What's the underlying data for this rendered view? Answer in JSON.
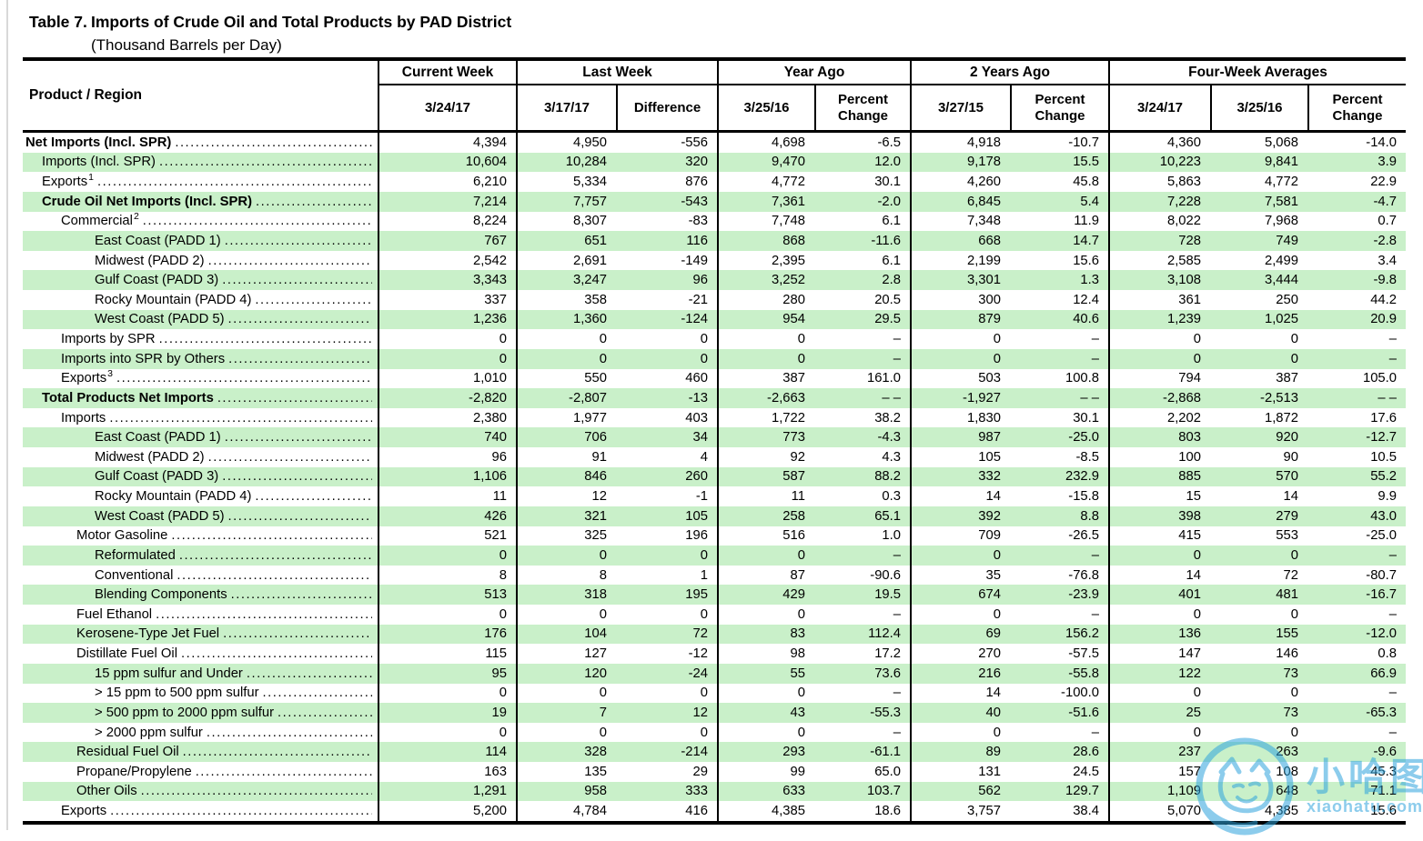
{
  "title": {
    "label": "Table 7.",
    "text": "Imports of Crude Oil and Total Products by PAD District",
    "subtitle": "(Thousand Barrels per Day)"
  },
  "header": {
    "product_region": "Product / Region",
    "groups": [
      {
        "label": "Current Week",
        "cols": [
          "3/24/17"
        ]
      },
      {
        "label": "Last Week",
        "cols": [
          "3/17/17",
          "Difference"
        ]
      },
      {
        "label": "Year Ago",
        "cols": [
          "3/25/16",
          "Percent Change"
        ]
      },
      {
        "label": "2 Years Ago",
        "cols": [
          "3/27/15",
          "Percent Change"
        ]
      },
      {
        "label": "Four-Week Averages",
        "cols": [
          "3/24/17",
          "3/25/16",
          "Percent Change"
        ]
      }
    ]
  },
  "rows": [
    {
      "label": "Net Imports (Incl. SPR)",
      "sup": "",
      "indent": 0,
      "bold": true,
      "values": [
        "4,394",
        "4,950",
        "-556",
        "4,698",
        "-6.5",
        "4,918",
        "-10.7",
        "4,360",
        "5,068",
        "-14.0"
      ]
    },
    {
      "label": "Imports (Incl. SPR)",
      "sup": "",
      "indent": 1,
      "bold": false,
      "values": [
        "10,604",
        "10,284",
        "320",
        "9,470",
        "12.0",
        "9,178",
        "15.5",
        "10,223",
        "9,841",
        "3.9"
      ]
    },
    {
      "label": "Exports",
      "sup": "1",
      "indent": 1,
      "bold": false,
      "values": [
        "6,210",
        "5,334",
        "876",
        "4,772",
        "30.1",
        "4,260",
        "45.8",
        "5,863",
        "4,772",
        "22.9"
      ]
    },
    {
      "label": "Crude Oil Net Imports (Incl. SPR)",
      "sup": "",
      "indent": 1,
      "bold": true,
      "values": [
        "7,214",
        "7,757",
        "-543",
        "7,361",
        "-2.0",
        "6,845",
        "5.4",
        "7,228",
        "7,581",
        "-4.7"
      ]
    },
    {
      "label": "Commercial",
      "sup": "2",
      "indent": 2,
      "bold": false,
      "values": [
        "8,224",
        "8,307",
        "-83",
        "7,748",
        "6.1",
        "7,348",
        "11.9",
        "8,022",
        "7,968",
        "0.7"
      ]
    },
    {
      "label": "East Coast (PADD 1)",
      "sup": "",
      "indent": 4,
      "bold": false,
      "values": [
        "767",
        "651",
        "116",
        "868",
        "-11.6",
        "668",
        "14.7",
        "728",
        "749",
        "-2.8"
      ]
    },
    {
      "label": "Midwest (PADD 2)",
      "sup": "",
      "indent": 4,
      "bold": false,
      "values": [
        "2,542",
        "2,691",
        "-149",
        "2,395",
        "6.1",
        "2,199",
        "15.6",
        "2,585",
        "2,499",
        "3.4"
      ]
    },
    {
      "label": "Gulf Coast (PADD 3)",
      "sup": "",
      "indent": 4,
      "bold": false,
      "values": [
        "3,343",
        "3,247",
        "96",
        "3,252",
        "2.8",
        "3,301",
        "1.3",
        "3,108",
        "3,444",
        "-9.8"
      ]
    },
    {
      "label": "Rocky Mountain (PADD 4)",
      "sup": "",
      "indent": 4,
      "bold": false,
      "values": [
        "337",
        "358",
        "-21",
        "280",
        "20.5",
        "300",
        "12.4",
        "361",
        "250",
        "44.2"
      ]
    },
    {
      "label": "West Coast (PADD 5)",
      "sup": "",
      "indent": 4,
      "bold": false,
      "values": [
        "1,236",
        "1,360",
        "-124",
        "954",
        "29.5",
        "879",
        "40.6",
        "1,239",
        "1,025",
        "20.9"
      ]
    },
    {
      "label": "Imports by SPR",
      "sup": "",
      "indent": 2,
      "bold": false,
      "values": [
        "0",
        "0",
        "0",
        "0",
        "–",
        "0",
        "–",
        "0",
        "0",
        "–"
      ]
    },
    {
      "label": "Imports into SPR by Others",
      "sup": "",
      "indent": 2,
      "bold": false,
      "values": [
        "0",
        "0",
        "0",
        "0",
        "–",
        "0",
        "–",
        "0",
        "0",
        "–"
      ]
    },
    {
      "label": "Exports",
      "sup": "3",
      "indent": 2,
      "bold": false,
      "values": [
        "1,010",
        "550",
        "460",
        "387",
        "161.0",
        "503",
        "100.8",
        "794",
        "387",
        "105.0"
      ]
    },
    {
      "label": "Total Products Net Imports",
      "sup": "",
      "indent": 1,
      "bold": true,
      "values": [
        "-2,820",
        "-2,807",
        "-13",
        "-2,663",
        "– –",
        "-1,927",
        "– –",
        "-2,868",
        "-2,513",
        "– –"
      ]
    },
    {
      "label": "Imports",
      "sup": "",
      "indent": 2,
      "bold": false,
      "values": [
        "2,380",
        "1,977",
        "403",
        "1,722",
        "38.2",
        "1,830",
        "30.1",
        "2,202",
        "1,872",
        "17.6"
      ]
    },
    {
      "label": "East Coast (PADD 1)",
      "sup": "",
      "indent": 4,
      "bold": false,
      "values": [
        "740",
        "706",
        "34",
        "773",
        "-4.3",
        "987",
        "-25.0",
        "803",
        "920",
        "-12.7"
      ]
    },
    {
      "label": "Midwest (PADD 2)",
      "sup": "",
      "indent": 4,
      "bold": false,
      "values": [
        "96",
        "91",
        "4",
        "92",
        "4.3",
        "105",
        "-8.5",
        "100",
        "90",
        "10.5"
      ]
    },
    {
      "label": "Gulf Coast (PADD 3)",
      "sup": "",
      "indent": 4,
      "bold": false,
      "values": [
        "1,106",
        "846",
        "260",
        "587",
        "88.2",
        "332",
        "232.9",
        "885",
        "570",
        "55.2"
      ]
    },
    {
      "label": "Rocky Mountain (PADD 4)",
      "sup": "",
      "indent": 4,
      "bold": false,
      "values": [
        "11",
        "12",
        "-1",
        "11",
        "0.3",
        "14",
        "-15.8",
        "15",
        "14",
        "9.9"
      ]
    },
    {
      "label": "West Coast (PADD 5)",
      "sup": "",
      "indent": 4,
      "bold": false,
      "values": [
        "426",
        "321",
        "105",
        "258",
        "65.1",
        "392",
        "8.8",
        "398",
        "279",
        "43.0"
      ]
    },
    {
      "label": "Motor Gasoline",
      "sup": "",
      "indent": 3,
      "bold": false,
      "values": [
        "521",
        "325",
        "196",
        "516",
        "1.0",
        "709",
        "-26.5",
        "415",
        "553",
        "-25.0"
      ]
    },
    {
      "label": "Reformulated",
      "sup": "",
      "indent": 4,
      "bold": false,
      "values": [
        "0",
        "0",
        "0",
        "0",
        "–",
        "0",
        "–",
        "0",
        "0",
        "–"
      ]
    },
    {
      "label": "Conventional",
      "sup": "",
      "indent": 4,
      "bold": false,
      "values": [
        "8",
        "8",
        "1",
        "87",
        "-90.6",
        "35",
        "-76.8",
        "14",
        "72",
        "-80.7"
      ]
    },
    {
      "label": "Blending Components",
      "sup": "",
      "indent": 4,
      "bold": false,
      "values": [
        "513",
        "318",
        "195",
        "429",
        "19.5",
        "674",
        "-23.9",
        "401",
        "481",
        "-16.7"
      ]
    },
    {
      "label": "Fuel Ethanol",
      "sup": "",
      "indent": 3,
      "bold": false,
      "values": [
        "0",
        "0",
        "0",
        "0",
        "–",
        "0",
        "–",
        "0",
        "0",
        "–"
      ]
    },
    {
      "label": "Kerosene-Type Jet Fuel",
      "sup": "",
      "indent": 3,
      "bold": false,
      "values": [
        "176",
        "104",
        "72",
        "83",
        "112.4",
        "69",
        "156.2",
        "136",
        "155",
        "-12.0"
      ]
    },
    {
      "label": "Distillate Fuel Oil",
      "sup": "",
      "indent": 3,
      "bold": false,
      "values": [
        "115",
        "127",
        "-12",
        "98",
        "17.2",
        "270",
        "-57.5",
        "147",
        "146",
        "0.8"
      ]
    },
    {
      "label": "15 ppm sulfur and Under",
      "sup": "",
      "indent": 4,
      "bold": false,
      "values": [
        "95",
        "120",
        "-24",
        "55",
        "73.6",
        "216",
        "-55.8",
        "122",
        "73",
        "66.9"
      ]
    },
    {
      "label": "> 15 ppm to 500 ppm sulfur",
      "sup": "",
      "indent": 4,
      "bold": false,
      "values": [
        "0",
        "0",
        "0",
        "0",
        "–",
        "14",
        "-100.0",
        "0",
        "0",
        "–"
      ]
    },
    {
      "label": "> 500 ppm to 2000 ppm sulfur",
      "sup": "",
      "indent": 4,
      "bold": false,
      "values": [
        "19",
        "7",
        "12",
        "43",
        "-55.3",
        "40",
        "-51.6",
        "25",
        "73",
        "-65.3"
      ]
    },
    {
      "label": "> 2000 ppm sulfur",
      "sup": "",
      "indent": 4,
      "bold": false,
      "values": [
        "0",
        "0",
        "0",
        "0",
        "–",
        "0",
        "–",
        "0",
        "0",
        "–"
      ]
    },
    {
      "label": "Residual Fuel Oil",
      "sup": "",
      "indent": 3,
      "bold": false,
      "values": [
        "114",
        "328",
        "-214",
        "293",
        "-61.1",
        "89",
        "28.6",
        "237",
        "263",
        "-9.6"
      ]
    },
    {
      "label": "Propane/Propylene",
      "sup": "",
      "indent": 3,
      "bold": false,
      "values": [
        "163",
        "135",
        "29",
        "99",
        "65.0",
        "131",
        "24.5",
        "157",
        "108",
        "45.3"
      ]
    },
    {
      "label": "Other Oils",
      "sup": "",
      "indent": 3,
      "bold": false,
      "values": [
        "1,291",
        "958",
        "333",
        "633",
        "103.7",
        "562",
        "129.7",
        "1,109",
        "648",
        "71.1"
      ]
    },
    {
      "label": "Exports",
      "sup": "",
      "indent": 2,
      "bold": false,
      "values": [
        "5,200",
        "4,784",
        "416",
        "4,385",
        "18.6",
        "3,757",
        "38.4",
        "5,070",
        "4,385",
        "15.6"
      ]
    }
  ],
  "colors": {
    "row_green": "#c9f0c9",
    "watermark_blue": "#2fa4dd"
  },
  "watermark": {
    "text": "小哈图",
    "url": "xiaohatu.com"
  }
}
